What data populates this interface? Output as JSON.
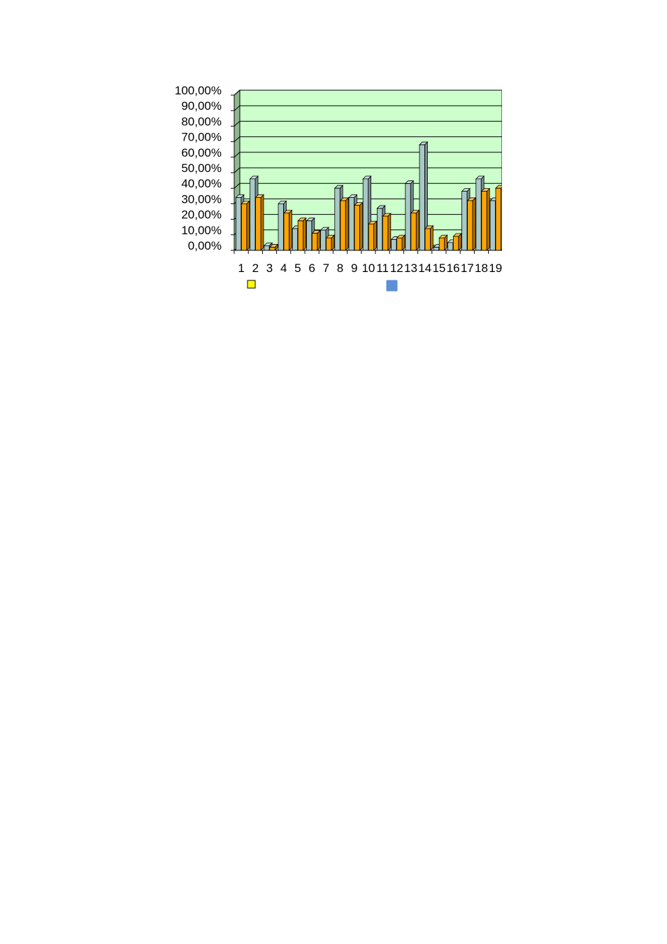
{
  "chart_data": {
    "type": "bar",
    "title": "",
    "xlabel": "",
    "ylabel": "",
    "ylim": [
      0,
      1
    ],
    "y_tick_values": [
      0,
      0.1,
      0.2,
      0.3,
      0.4,
      0.5,
      0.6,
      0.7,
      0.8,
      0.9,
      1.0
    ],
    "y_tick_labels": [
      "0,00%",
      "10,00%",
      "20,00%",
      "30,00%",
      "40,00%",
      "50,00%",
      "60,00%",
      "70,00%",
      "80,00%",
      "90,00%",
      "100,00%"
    ],
    "categories": [
      "1",
      "2",
      "3",
      "4",
      "5",
      "6",
      "7",
      "8",
      "9",
      "10",
      "11",
      "12",
      "13",
      "14",
      "15",
      "16",
      "17",
      "18",
      "19"
    ],
    "grid": true,
    "three_d": true,
    "plot_background": "#ccffcc",
    "legend_position": "bottom",
    "series": [
      {
        "color": "#a9c8c8",
        "values": [
          0.34,
          0.46,
          0.03,
          0.3,
          0.14,
          0.19,
          0.13,
          0.4,
          0.34,
          0.46,
          0.27,
          0.07,
          0.43,
          0.68,
          0.02,
          0.05,
          0.38,
          0.46,
          0.32
        ]
      },
      {
        "color": "#ffa500",
        "values": [
          0.3,
          0.34,
          0.02,
          0.24,
          0.19,
          0.11,
          0.08,
          0.32,
          0.29,
          0.17,
          0.22,
          0.08,
          0.24,
          0.14,
          0.08,
          0.09,
          0.32,
          0.38,
          0.4
        ]
      }
    ],
    "legend_swatches": [
      {
        "color": "#ffff00",
        "border": "#000000"
      },
      {
        "color": "#5b8fd8",
        "border": "#5b8fd8"
      }
    ]
  }
}
